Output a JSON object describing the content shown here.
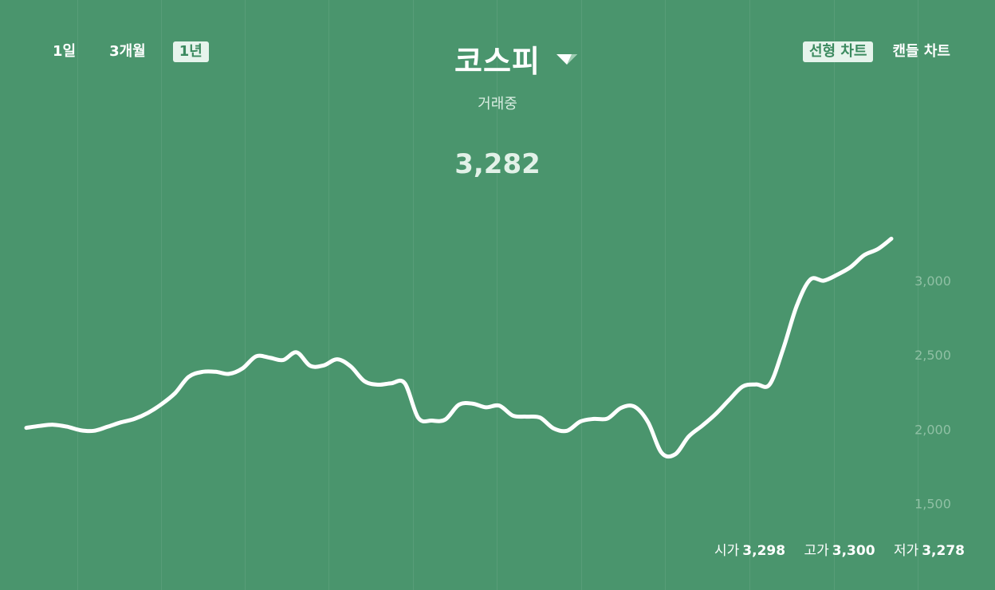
{
  "header": {
    "title": "코스피",
    "status": "거래중",
    "price": "3,282"
  },
  "range_tabs": [
    {
      "label": "1일",
      "active": false
    },
    {
      "label": "3개월",
      "active": false
    },
    {
      "label": "1년",
      "active": true
    }
  ],
  "chart_type_tabs": [
    {
      "label": "선형 차트",
      "active": true
    },
    {
      "label": "캔들 차트",
      "active": false
    }
  ],
  "ohlc": {
    "open_label": "시가",
    "open_value": "3,298",
    "high_label": "고가",
    "high_value": "3,300",
    "low_label": "저가",
    "low_value": "3,278"
  },
  "colors": {
    "background": "#4a956d",
    "line": "#ffffff",
    "active_tab_bg": "#e6f4ec",
    "active_tab_text": "#3b8a5f",
    "axis_text": "#8fc0a4"
  },
  "icons": {
    "dropdown": "triangle-down-icon"
  },
  "chart_data": {
    "type": "line",
    "title": "",
    "xlabel": "",
    "ylabel": "",
    "ylim": [
      1000,
      3300
    ],
    "y_ticks": [
      "3,000",
      "2,500",
      "2,000",
      "1,500"
    ],
    "y_tick_values": [
      3000,
      2500,
      2000,
      1500
    ],
    "grid": "vertical",
    "series": [
      {
        "values": [
          2010,
          2023,
          2031,
          2018,
          1994,
          1990,
          2017,
          2047,
          2070,
          2111,
          2169,
          2243,
          2352,
          2386,
          2387,
          2373,
          2410,
          2491,
          2482,
          2466,
          2518,
          2427,
          2430,
          2471,
          2423,
          2325,
          2300,
          2310,
          2310,
          2077,
          2059,
          2066,
          2165,
          2173,
          2148,
          2159,
          2092,
          2085,
          2079,
          2007,
          1990,
          2053,
          2070,
          2073,
          2144,
          2152,
          2048,
          1842,
          1832,
          1951,
          2024,
          2103,
          2198,
          2288,
          2302,
          2302,
          2542,
          2830,
          3007,
          3000,
          3040,
          3092,
          3172,
          3212,
          3282
        ]
      }
    ]
  }
}
